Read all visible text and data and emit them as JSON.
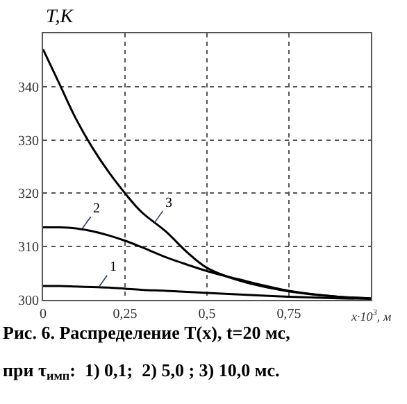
{
  "chart_data": {
    "type": "line",
    "ylabel": "T,K",
    "xlabel": "x·10$^{3}$, м",
    "x": [
      0,
      0.05,
      0.1,
      0.15,
      0.2,
      0.25,
      0.3,
      0.375,
      0.44,
      0.5,
      0.6,
      0.75,
      0.9,
      1.0
    ],
    "series": [
      {
        "color": "#000000",
        "values": [
          302.6,
          302.6,
          302.5,
          302.4,
          302.3,
          302.1,
          301.9,
          301.7,
          301.5,
          301.3,
          301.0,
          300.6,
          300.3,
          300.2
        ]
      },
      {
        "color": "#000000",
        "values": [
          313.6,
          313.6,
          313.4,
          312.9,
          312.1,
          311.1,
          309.9,
          308.0,
          306.6,
          305.4,
          303.8,
          301.7,
          300.6,
          300.3
        ]
      },
      {
        "color": "#000000",
        "values": [
          347,
          340.5,
          334,
          328.6,
          324,
          320,
          316.5,
          312.8,
          308.9,
          306,
          303.6,
          301.6,
          300.6,
          300.3
        ]
      }
    ],
    "xlim": [
      0,
      1.0
    ],
    "xticks": [
      {
        "value": 0,
        "label": "0"
      },
      {
        "value": 0.25,
        "label": "0,25"
      },
      {
        "value": 0.5,
        "label": "0,5"
      },
      {
        "value": 0.75,
        "label": "0,75"
      }
    ],
    "ylim": [
      300,
      350
    ],
    "yticks": [
      300,
      310,
      320,
      330,
      340
    ],
    "grid": true,
    "line_style": "solid",
    "marker": "none",
    "annotations": [
      {
        "text": "1",
        "x": 0.17,
        "y": 302.4
      },
      {
        "text": "2",
        "x": 0.12,
        "y": 313.4
      },
      {
        "text": "3",
        "x": 0.34,
        "y": 314.5
      },
      "Рис. 6. Распределение T(x), t=20 мс,",
      "при τ$_{имп}$:  1) 0,1;  2) 5,0 ; 3) 10,0 мс."
    ]
  }
}
